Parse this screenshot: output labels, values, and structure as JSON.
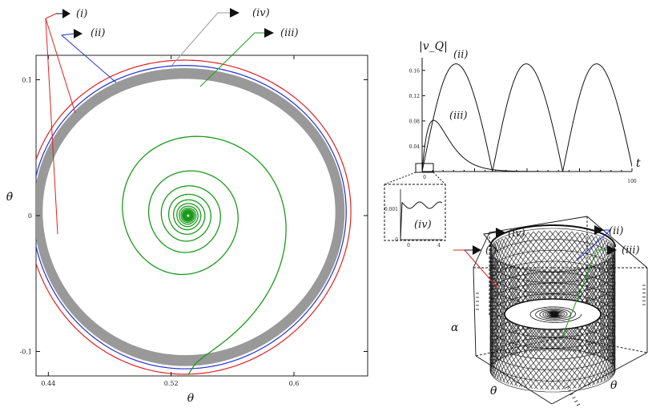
{
  "chart_data": [
    {
      "type": "line",
      "panel": "phase-portrait",
      "xlabel": "θ",
      "ylabel": "θ̇",
      "xlim": [
        0.432,
        0.648
      ],
      "ylim": [
        -0.118,
        0.118
      ],
      "xticks": [
        "0.44",
        "0.52",
        "0.6"
      ],
      "yticks": [
        "0.1",
        "0",
        "-0.1"
      ],
      "center": [
        0.531,
        0.0
      ],
      "series": [
        {
          "name": "(i)",
          "color": "#e02020",
          "kind": "closed-orbit",
          "rx": 0.1045,
          "ry": 0.1165
        },
        {
          "name": "(ii)",
          "color": "#2030d0",
          "kind": "closed-orbit",
          "rx": 0.1015,
          "ry": 0.1125
        },
        {
          "name": "(iii)",
          "color": "#1a9a1a",
          "kind": "spiral",
          "rx_start": 0.0995,
          "ry_start": 0.117,
          "turns": 16,
          "rx_end": 0.001,
          "ry_end": 0.001
        },
        {
          "name": "(iv)",
          "color": "#999999",
          "kind": "band",
          "rx_outer": 0.1005,
          "rx_inner": 0.0945,
          "ry_outer": 0.1105,
          "ry_inner": 0.1025
        }
      ],
      "annotations": [
        "(i)",
        "(ii)",
        "(iv)",
        "(iii)"
      ]
    },
    {
      "type": "line",
      "panel": "speed-vs-time",
      "ylabel": "|v_Q|",
      "xlabel": "t",
      "xlim": [
        0,
        100
      ],
      "ylim": [
        0,
        0.18
      ],
      "xticks": [
        "0",
        "100"
      ],
      "yticks": [
        "0.04",
        "0.08",
        "0.12",
        "0.16"
      ],
      "series": [
        {
          "name": "(ii)",
          "color": "#111111",
          "period": 33.5,
          "peak": 0.17
        },
        {
          "name": "(iii)",
          "color": "#111111",
          "peak_t": 5.5,
          "peak": 0.081
        }
      ],
      "inset": {
        "label": "(iv)",
        "ytick": "0.001",
        "zero": "0",
        "xticks": [
          "0",
          "4"
        ],
        "y_level": 0.00125,
        "amplitude": 0.00018
      }
    },
    {
      "type": "line",
      "panel": "3d-attractor",
      "axis_labels": [
        "α",
        "θ̇",
        "θ"
      ],
      "annotations": [
        "(i)",
        "(iv)",
        "(ii)",
        "(iii)"
      ]
    }
  ]
}
